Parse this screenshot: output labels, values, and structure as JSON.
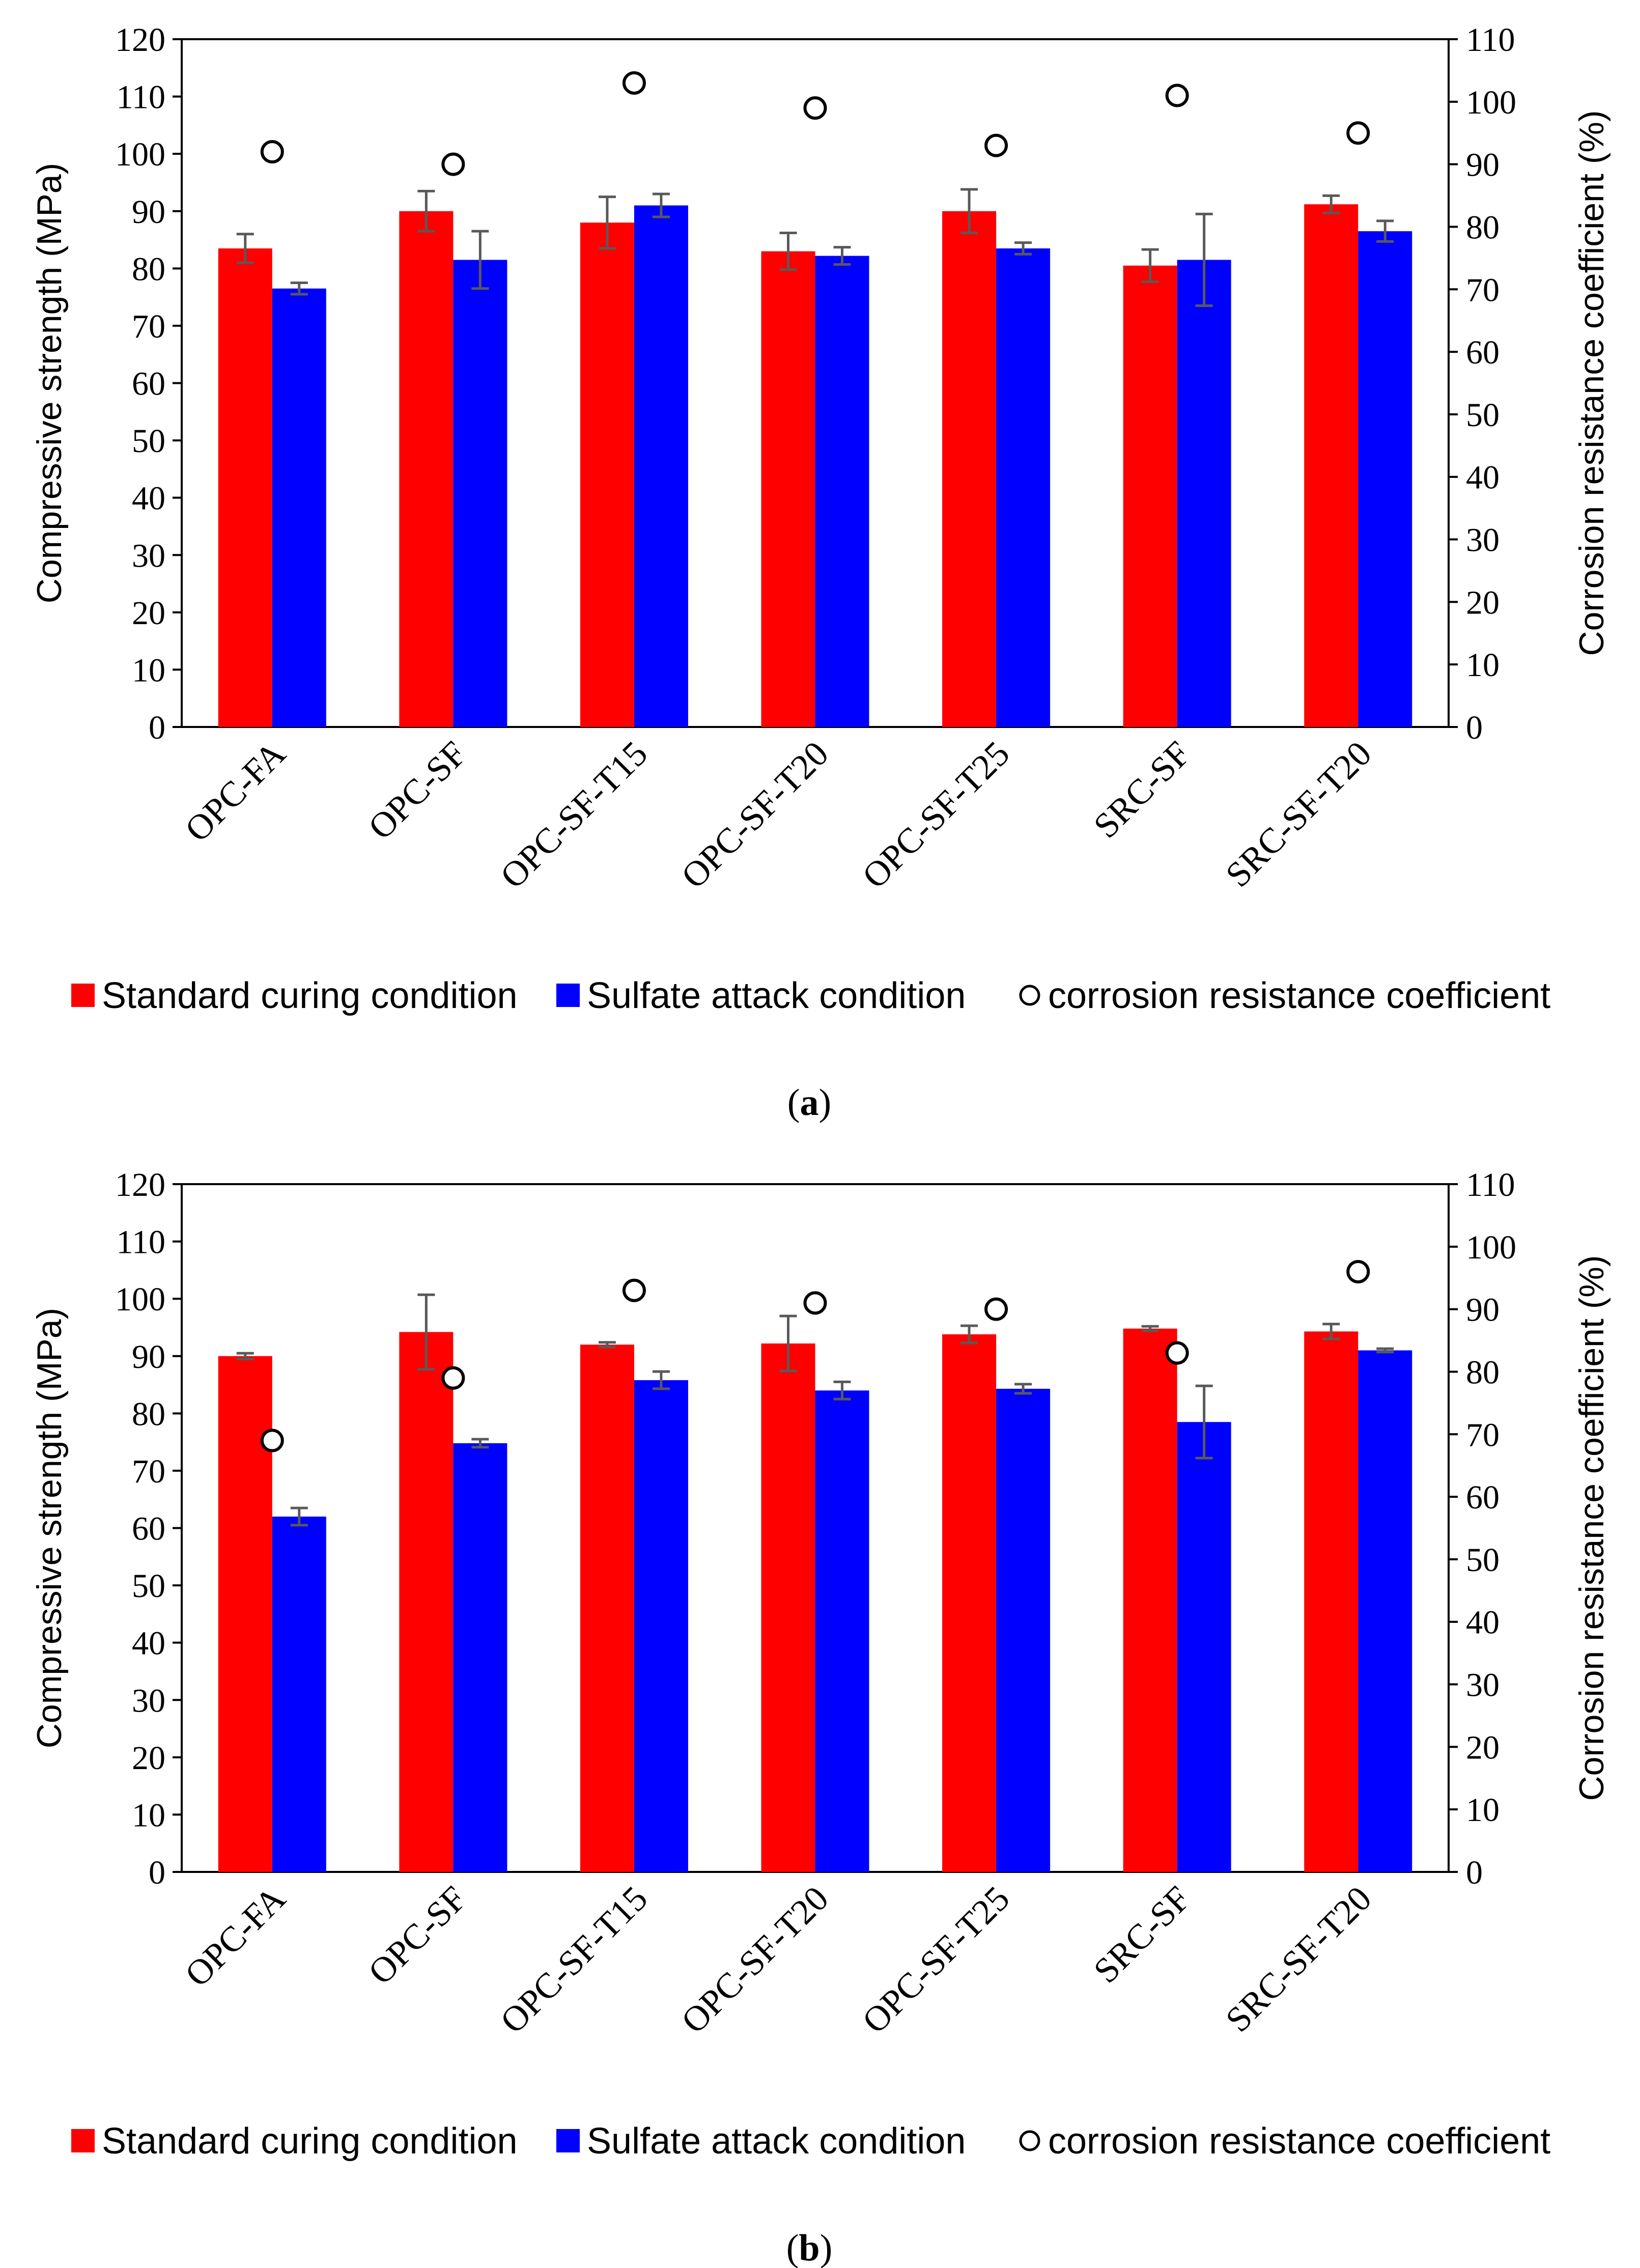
{
  "chart_data": [
    {
      "type": "bar",
      "panel": "a",
      "caption_prefix": "(",
      "caption_letter": "a",
      "caption_suffix": ")",
      "categories": [
        "OPC-FA",
        "OPC-SF",
        "OPC-SF-T15",
        "OPC-SF-T20",
        "OPC-SF-T25",
        "SRC-SF",
        "SRC-SF-T20"
      ],
      "series": [
        {
          "name": "Standard curing condition",
          "axis": "left",
          "color": "#ff0000",
          "values": [
            83.5,
            90.0,
            88.0,
            83.0,
            90.0,
            80.5,
            91.2
          ],
          "errors": [
            2.5,
            3.5,
            4.5,
            3.2,
            3.8,
            2.8,
            1.5
          ]
        },
        {
          "name": "Sulfate attack condition",
          "axis": "left",
          "color": "#0000ff",
          "values": [
            76.5,
            81.5,
            91.0,
            82.2,
            83.5,
            81.5,
            86.5
          ],
          "errors": [
            1.0,
            5.0,
            2.0,
            1.5,
            1.0,
            8.0,
            1.8
          ]
        },
        {
          "name": "corrosion resistance coefficient",
          "axis": "right",
          "marker": "circle",
          "values": [
            92,
            90,
            103,
            99,
            93,
            101,
            95
          ]
        }
      ],
      "left_axis": {
        "label": "Compressive strength (MPa)",
        "min": 0,
        "max": 120,
        "step": 10,
        "ticks": [
          "0",
          "10",
          "20",
          "30",
          "40",
          "50",
          "60",
          "70",
          "80",
          "90",
          "100",
          "110",
          "120"
        ]
      },
      "right_axis": {
        "label": "Corrosion resistance coefficient (%)",
        "min": 0,
        "max": 110,
        "step": 10,
        "ticks": [
          "0",
          "10",
          "20",
          "30",
          "40",
          "50",
          "60",
          "70",
          "80",
          "90",
          "100",
          "110"
        ]
      },
      "legend": [
        "Standard curing condition",
        "Sulfate attack condition",
        "corrosion resistance coefficient"
      ]
    },
    {
      "type": "bar",
      "panel": "b",
      "caption_prefix": "(",
      "caption_letter": "b",
      "caption_suffix": ")",
      "categories": [
        "OPC-FA",
        "OPC-SF",
        "OPC-SF-T15",
        "OPC-SF-T20",
        "OPC-SF-T25",
        "SRC-SF",
        "SRC-SF-T20"
      ],
      "series": [
        {
          "name": "Standard curing condition",
          "axis": "left",
          "color": "#ff0000",
          "values": [
            90.0,
            94.2,
            92.0,
            92.2,
            93.8,
            94.8,
            94.3
          ],
          "errors": [
            0.5,
            6.5,
            0.4,
            4.8,
            1.5,
            0.4,
            1.3
          ]
        },
        {
          "name": "Sulfate attack condition",
          "axis": "left",
          "color": "#0000ff",
          "values": [
            62.0,
            74.8,
            85.8,
            84.0,
            84.3,
            78.5,
            91.0
          ],
          "errors": [
            1.5,
            0.7,
            1.5,
            1.5,
            0.8,
            6.3,
            0.3
          ]
        },
        {
          "name": "corrosion resistance coefficient",
          "axis": "right",
          "marker": "circle",
          "values": [
            69,
            79,
            93,
            91,
            90,
            83,
            96
          ]
        }
      ],
      "left_axis": {
        "label": "Compressive strength (MPa)",
        "min": 0,
        "max": 120,
        "step": 10,
        "ticks": [
          "0",
          "10",
          "20",
          "30",
          "40",
          "50",
          "60",
          "70",
          "80",
          "90",
          "100",
          "110",
          "120"
        ]
      },
      "right_axis": {
        "label": "Corrosion resistance coefficient (%)",
        "min": 0,
        "max": 110,
        "step": 10,
        "ticks": [
          "0",
          "10",
          "20",
          "30",
          "40",
          "50",
          "60",
          "70",
          "80",
          "90",
          "100",
          "110"
        ]
      },
      "legend": [
        "Standard curing condition",
        "Sulfate attack condition",
        "corrosion resistance coefficient"
      ]
    }
  ]
}
